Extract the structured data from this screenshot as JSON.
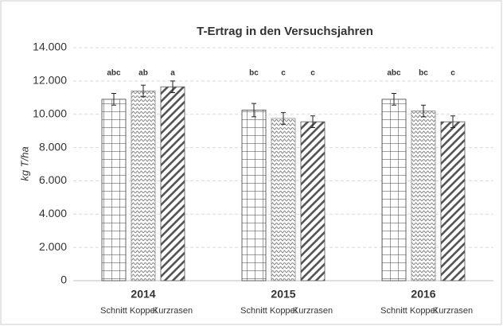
{
  "chart_data": {
    "type": "bar",
    "title": "T-Ertrag in den Versuchsjahren",
    "y_label": "kg T/ha",
    "categories": [
      "2014",
      "2015",
      "2016"
    ],
    "series": [
      {
        "name": "Schnitt",
        "color": "#404040",
        "values": [
          10900,
          10250,
          10900
        ],
        "errors": [
          350,
          400,
          350
        ],
        "letters": [
          "abc",
          "bc",
          "abc"
        ]
      },
      {
        "name": "Koppel",
        "color": "#8a8a8a",
        "values": [
          11400,
          9750,
          10200
        ],
        "errors": [
          350,
          350,
          350
        ],
        "letters": [
          "ab",
          "c",
          "bc"
        ]
      },
      {
        "name": "Kurzrasen",
        "color": "#555555",
        "values": [
          11650,
          9550,
          9550
        ],
        "errors": [
          350,
          350,
          350
        ],
        "letters": [
          "a",
          "c",
          "c"
        ]
      }
    ],
    "ylim": [
      0,
      14000
    ],
    "yticks": [
      0,
      {
        "value": 2000,
        "label": "2.000"
      },
      {
        "value": 4000,
        "label": "4.000"
      },
      {
        "value": 6000,
        "label": "6.000"
      },
      {
        "value": 8000,
        "label": "8.000"
      },
      {
        "value": 10000,
        "label": "10.000"
      },
      {
        "value": 12000,
        "label": "12.000"
      },
      {
        "value": 14000,
        "label": "14.000"
      }
    ],
    "grid": true
  }
}
